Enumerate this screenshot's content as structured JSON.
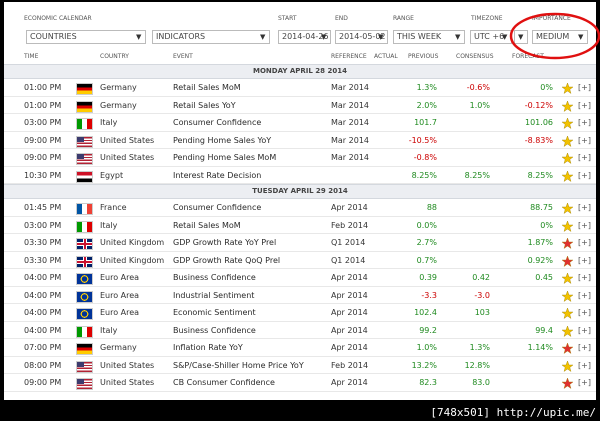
{
  "header": {
    "calendar_label": "ECONOMIC CALENDAR",
    "countries": "COUNTRIES",
    "indicators": "INDICATORS",
    "start_label": "START",
    "start": "2014-04-26",
    "end_label": "END",
    "end": "2014-05-02",
    "range_label": "RANGE",
    "range": "THIS WEEK",
    "timezone_label": "TIMEZONE",
    "timezone": "UTC +6",
    "importance_label": "IMPORTANCE",
    "importance": "MEDIUM"
  },
  "columns": [
    "TIME",
    "COUNTRY",
    "EVENT",
    "REFERENCE",
    "ACTUAL",
    "PREVIOUS",
    "CONSENSUS",
    "FORECAST"
  ],
  "add_label": "[+]",
  "days": [
    {
      "title": "MONDAY APRIL 28 2014",
      "rows": [
        {
          "time": "01:00 PM",
          "country": "Germany",
          "event": "Retail Sales MoM",
          "reference": "Mar 2014",
          "actual": null,
          "previous": "1.3%",
          "consensus": "-0.6%",
          "forecast": "0%",
          "flag": [
            "#000",
            "#d00",
            "#fc0"
          ],
          "flag_style": "h",
          "star": "#f2c200"
        },
        {
          "time": "01:00 PM",
          "country": "Germany",
          "event": "Retail Sales YoY",
          "reference": "Mar 2014",
          "actual": null,
          "previous": "2.0%",
          "consensus": "1.0%",
          "forecast": "-0.12%",
          "flag": [
            "#000",
            "#d00",
            "#fc0"
          ],
          "flag_style": "h",
          "star": "#f2c200"
        },
        {
          "time": "03:00 PM",
          "country": "Italy",
          "event": "Consumer Confidence",
          "reference": "Mar 2014",
          "actual": null,
          "previous": "101.7",
          "consensus": null,
          "forecast": "101.06",
          "flag": [
            "#090",
            "#fff",
            "#d00"
          ],
          "flag_style": "v",
          "star": "#f2c200"
        },
        {
          "time": "09:00 PM",
          "country": "United States",
          "event": "Pending Home Sales YoY",
          "reference": "Mar 2014",
          "actual": null,
          "previous": "-10.5%",
          "consensus": null,
          "forecast": "-8.83%",
          "flag": [
            "#b22234",
            "#fff",
            "#3c3b6e"
          ],
          "flag_style": "canton",
          "star": "#f2c200"
        },
        {
          "time": "09:00 PM",
          "country": "United States",
          "event": "Pending Home Sales MoM",
          "reference": "Mar 2014",
          "actual": null,
          "previous": "-0.8%",
          "consensus": null,
          "forecast": null,
          "flag": [
            "#b22234",
            "#fff",
            "#3c3b6e"
          ],
          "flag_style": "canton",
          "star": "#f2c200"
        },
        {
          "time": "10:30 PM",
          "country": "Egypt",
          "event": "Interest Rate Decision",
          "reference": null,
          "actual": null,
          "previous": "8.25%",
          "consensus": "8.25%",
          "forecast": "8.25%",
          "flag": [
            "#ce1126",
            "#fff",
            "#000"
          ],
          "flag_style": "h",
          "star": "#f2c200"
        }
      ]
    },
    {
      "title": "TUESDAY APRIL 29 2014",
      "rows": [
        {
          "time": "01:45 PM",
          "country": "France",
          "event": "Consumer Confidence",
          "reference": "Apr 2014",
          "actual": null,
          "previous": "88",
          "consensus": null,
          "forecast": "88.75",
          "flag": [
            "#0055a4",
            "#fff",
            "#ef4135"
          ],
          "flag_style": "v",
          "star": "#f2c200"
        },
        {
          "time": "03:00 PM",
          "country": "Italy",
          "event": "Retail Sales MoM",
          "reference": "Feb 2014",
          "actual": null,
          "previous": "0.0%",
          "consensus": null,
          "forecast": "0%",
          "flag": [
            "#090",
            "#fff",
            "#d00"
          ],
          "flag_style": "v",
          "star": "#f2c200"
        },
        {
          "time": "03:30 PM",
          "country": "United Kingdom",
          "event": "GDP Growth Rate YoY Prel",
          "reference": "Q1 2014",
          "actual": null,
          "previous": "2.7%",
          "consensus": null,
          "forecast": "1.87%",
          "flag": [
            "#012169",
            "#c8102e",
            "#fff"
          ],
          "flag_style": "cross",
          "star": "#e03030"
        },
        {
          "time": "03:30 PM",
          "country": "United Kingdom",
          "event": "GDP Growth Rate QoQ Prel",
          "reference": "Q1 2014",
          "actual": null,
          "previous": "0.7%",
          "consensus": null,
          "forecast": "0.92%",
          "flag": [
            "#012169",
            "#c8102e",
            "#fff"
          ],
          "flag_style": "cross",
          "star": "#e03030"
        },
        {
          "time": "04:00 PM",
          "country": "Euro Area",
          "event": "Business Confidence",
          "reference": "Apr 2014",
          "actual": null,
          "previous": "0.39",
          "consensus": "0.42",
          "forecast": "0.45",
          "flag": [
            "#039",
            "#fc0",
            "#039"
          ],
          "flag_style": "euro",
          "star": "#f2c200"
        },
        {
          "time": "04:00 PM",
          "country": "Euro Area",
          "event": "Industrial Sentiment",
          "reference": "Apr 2014",
          "actual": null,
          "previous": "-3.3",
          "consensus": "-3.0",
          "forecast": null,
          "flag": [
            "#039",
            "#fc0",
            "#039"
          ],
          "flag_style": "euro",
          "star": "#f2c200"
        },
        {
          "time": "04:00 PM",
          "country": "Euro Area",
          "event": "Economic Sentiment",
          "reference": "Apr 2014",
          "actual": null,
          "previous": "102.4",
          "consensus": "103",
          "forecast": null,
          "flag": [
            "#039",
            "#fc0",
            "#039"
          ],
          "flag_style": "euro",
          "star": "#f2c200"
        },
        {
          "time": "04:00 PM",
          "country": "Italy",
          "event": "Business Confidence",
          "reference": "Apr 2014",
          "actual": null,
          "previous": "99.2",
          "consensus": null,
          "forecast": "99.4",
          "flag": [
            "#090",
            "#fff",
            "#d00"
          ],
          "flag_style": "v",
          "star": "#f2c200"
        },
        {
          "time": "07:00 PM",
          "country": "Germany",
          "event": "Inflation Rate YoY",
          "reference": "Apr 2014",
          "actual": null,
          "previous": "1.0%",
          "consensus": "1.3%",
          "forecast": "1.14%",
          "flag": [
            "#000",
            "#d00",
            "#fc0"
          ],
          "flag_style": "h",
          "star": "#e03030"
        },
        {
          "time": "08:00 PM",
          "country": "United States",
          "event": "S&P/Case-Shiller Home Price YoY",
          "reference": "Feb 2014",
          "actual": null,
          "previous": "13.2%",
          "consensus": "12.8%",
          "forecast": null,
          "flag": [
            "#b22234",
            "#fff",
            "#3c3b6e"
          ],
          "flag_style": "canton",
          "star": "#f2c200"
        },
        {
          "time": "09:00 PM",
          "country": "United States",
          "event": "CB Consumer Confidence",
          "reference": "Apr 2014",
          "actual": null,
          "previous": "82.3",
          "consensus": "83.0",
          "forecast": null,
          "flag": [
            "#b22234",
            "#fff",
            "#3c3b6e"
          ],
          "flag_style": "canton",
          "star": "#e03030"
        }
      ]
    }
  ],
  "footer": "[748x501] http://upic.me/"
}
